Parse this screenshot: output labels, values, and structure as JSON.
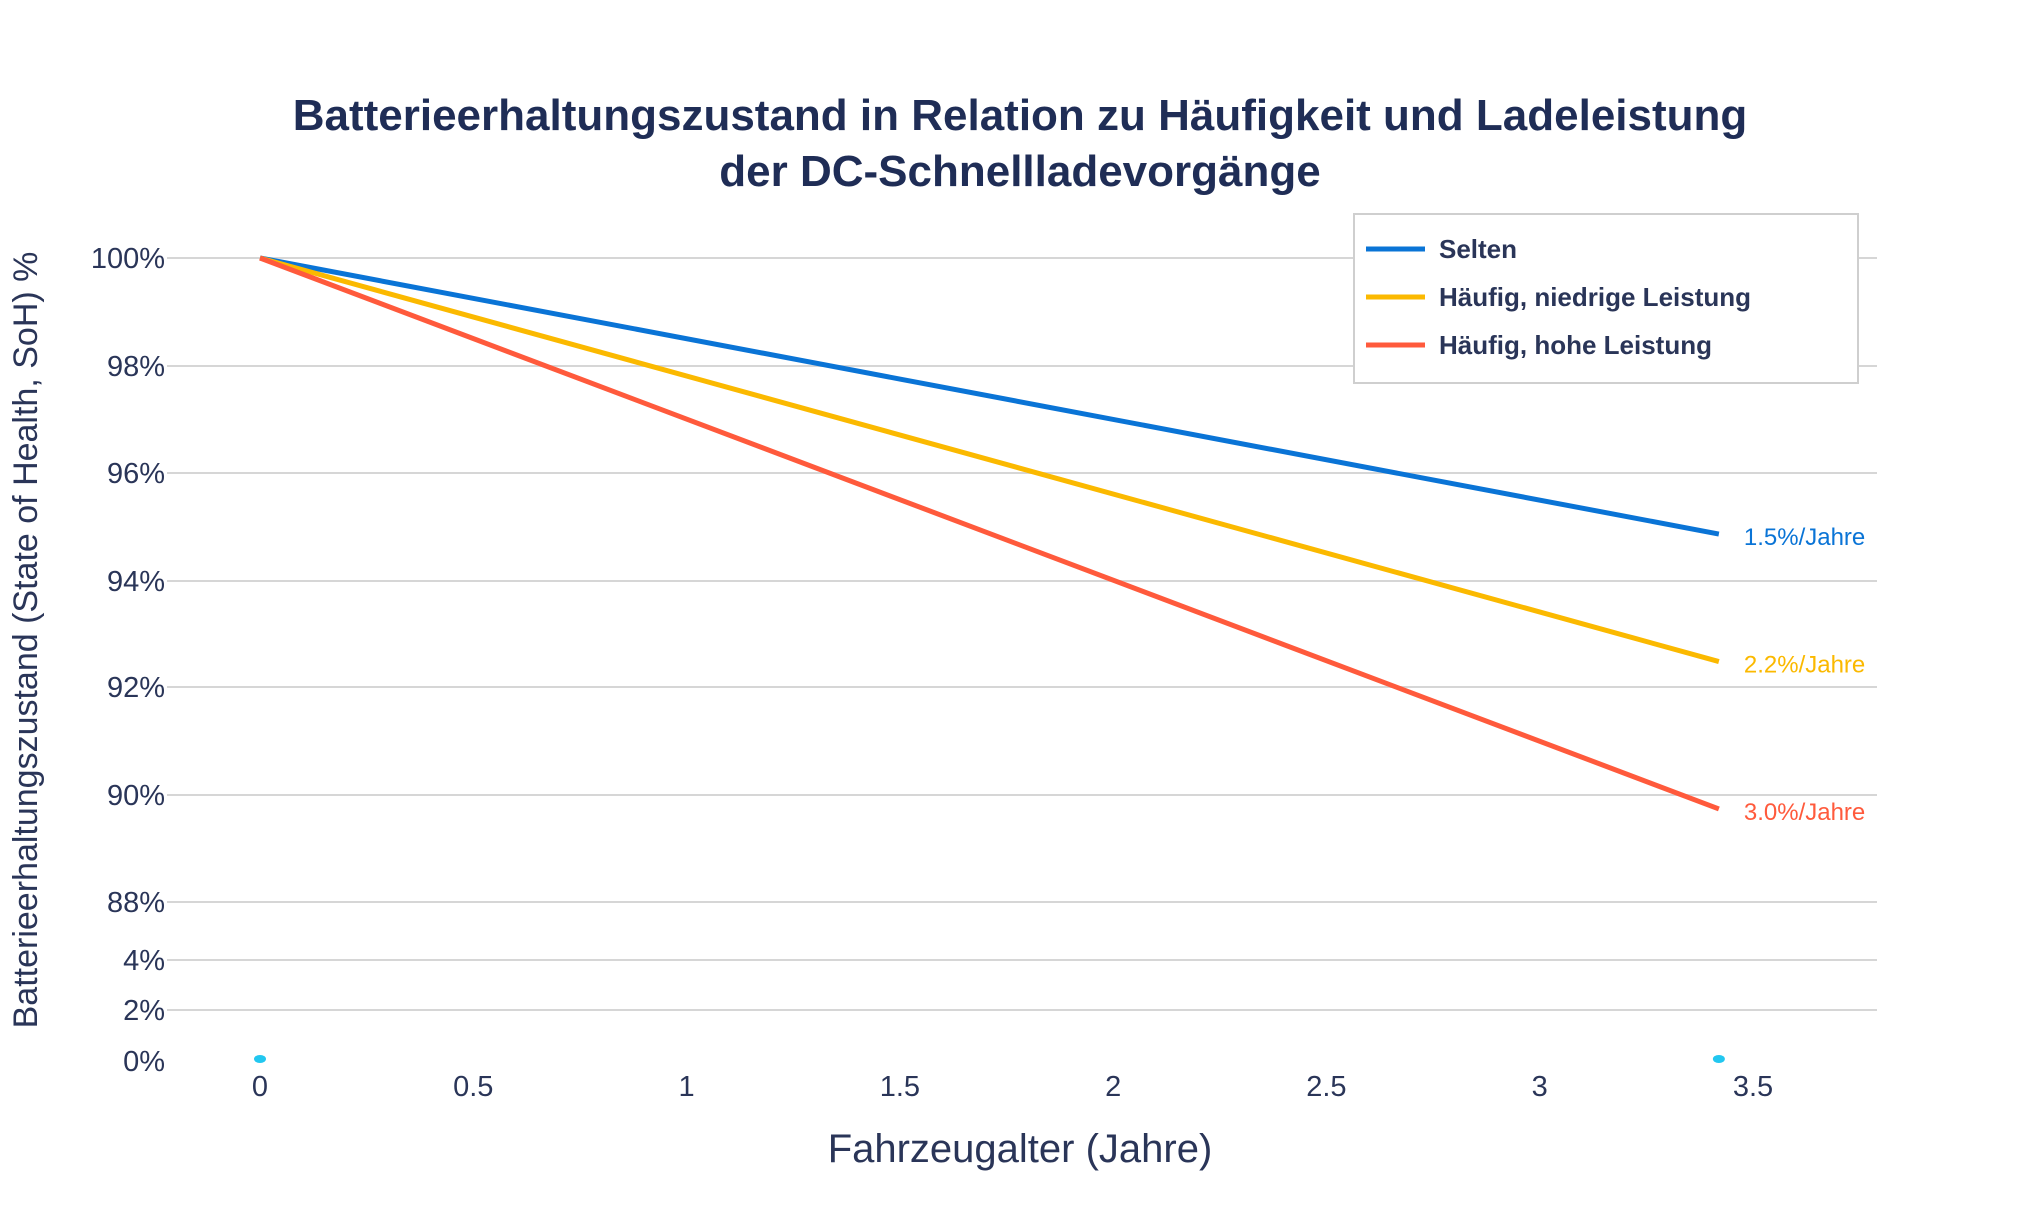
{
  "chart_data": {
    "type": "line",
    "title": [
      "Batterieerhaltungszustand in Relation zu Häufigkeit und Ladeleistung",
      "der DC-Schnellladevorgänge"
    ],
    "xlabel": "Fahrzeugalter (Jahre)",
    "ylabel": "Batterieerhaltungszustand (State of Health, SoH) %",
    "x_ticks": [
      "0",
      "0.5",
      "1",
      "1.5",
      "2",
      "2.5",
      "3",
      "3.5"
    ],
    "x_tick_values": [
      0,
      0.5,
      1,
      1.5,
      2,
      2.5,
      3,
      3.5
    ],
    "y_ticks": [
      "100%",
      "98%",
      "96%",
      "94%",
      "92%",
      "90%",
      "88%",
      "4%",
      "2%",
      "0%"
    ],
    "y_tick_values": [
      100,
      98,
      96,
      94,
      92,
      90,
      88,
      4,
      2,
      0
    ],
    "grid": true,
    "legend_position": "top-right",
    "series": [
      {
        "name": "Selten",
        "color": "#0a74d6",
        "x": [
          0,
          3.42
        ],
        "y": [
          100,
          94.87
        ],
        "annotation": "1.5%/Jahre"
      },
      {
        "name": "Häufig, niedrige Leistung",
        "color": "#fbb900",
        "x": [
          0,
          3.42
        ],
        "y": [
          100,
          92.48
        ],
        "annotation": "2.2%/Jahre"
      },
      {
        "name": "Häufig, hohe Leistung",
        "color": "#ff5a3c",
        "x": [
          0,
          3.42
        ],
        "y": [
          100,
          89.74
        ],
        "annotation": "3.0%/Jahre"
      }
    ],
    "markers": {
      "color": "#22c7f0",
      "x": [
        0,
        3.42
      ],
      "y": [
        0,
        0
      ]
    }
  }
}
